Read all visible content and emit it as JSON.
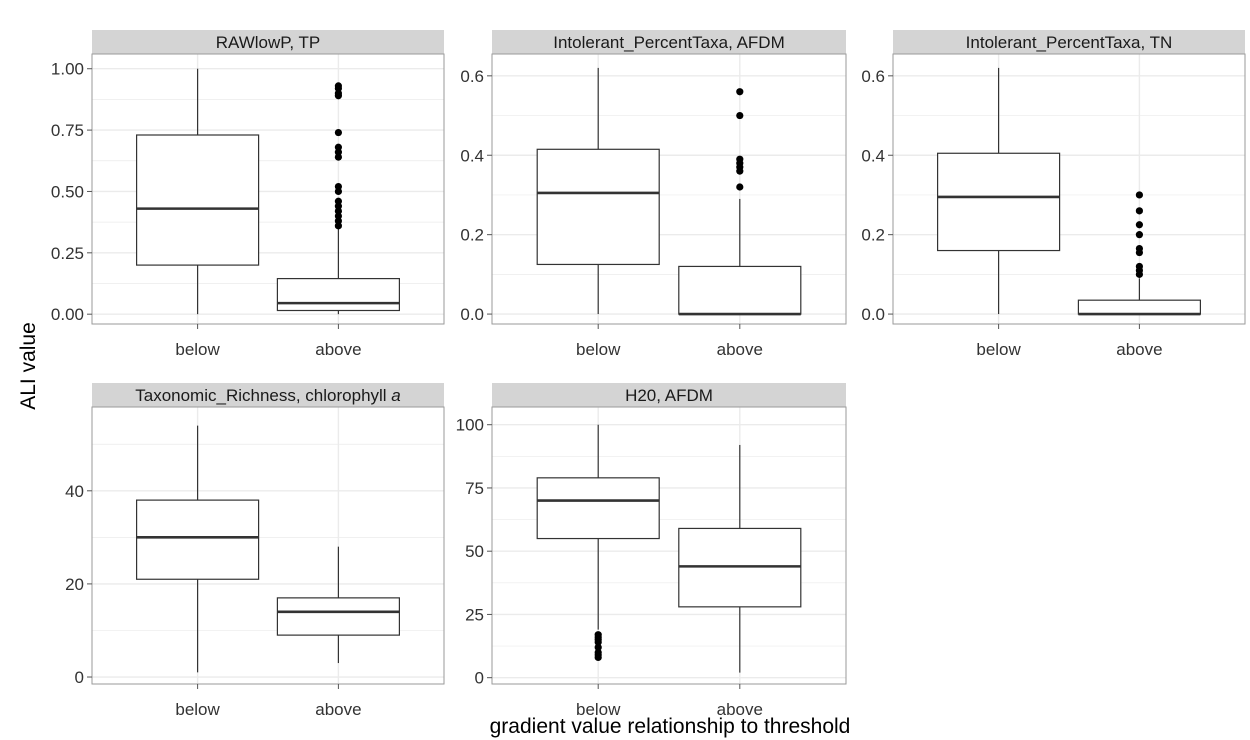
{
  "figure": {
    "ylabel": "ALI value",
    "xlabel": "gradient value relationship to threshold"
  },
  "colors": {
    "strip_fill": "#d4d4d4",
    "grid": "#ebebeb",
    "panel_border": "#9a9a9a",
    "box_stroke": "#333333",
    "outlier": "#000000"
  },
  "chart_data": [
    {
      "type": "box",
      "title": "RAWlowP, TP",
      "categories": [
        "below",
        "above"
      ],
      "ylim": [
        -0.04,
        1.06
      ],
      "yticks": [
        0,
        0.25,
        0.5,
        0.75,
        1
      ],
      "ytick_labels": [
        "0.00",
        "0.25",
        "0.50",
        "0.75",
        "1.00"
      ],
      "boxes": [
        {
          "category": "below",
          "min": 0.0,
          "q1": 0.2,
          "median": 0.43,
          "q3": 0.73,
          "max": 1.0,
          "outliers": []
        },
        {
          "category": "above",
          "min": 0.0,
          "q1": 0.015,
          "median": 0.045,
          "q3": 0.145,
          "max": 0.35,
          "outliers": [
            0.36,
            0.38,
            0.4,
            0.42,
            0.44,
            0.46,
            0.5,
            0.52,
            0.64,
            0.66,
            0.68,
            0.74,
            0.89,
            0.9,
            0.92,
            0.93
          ]
        }
      ]
    },
    {
      "type": "box",
      "title": "Intolerant_PercentTaxa, AFDM",
      "categories": [
        "below",
        "above"
      ],
      "ylim": [
        -0.025,
        0.655
      ],
      "yticks": [
        0,
        0.2,
        0.4,
        0.6
      ],
      "ytick_labels": [
        "0.0",
        "0.2",
        "0.4",
        "0.6"
      ],
      "boxes": [
        {
          "category": "below",
          "min": 0.0,
          "q1": 0.125,
          "median": 0.305,
          "q3": 0.415,
          "max": 0.62,
          "outliers": []
        },
        {
          "category": "above",
          "min": 0.0,
          "q1": 0.0,
          "median": 0.0,
          "q3": 0.12,
          "max": 0.29,
          "outliers": [
            0.32,
            0.36,
            0.37,
            0.38,
            0.39,
            0.5,
            0.56
          ]
        }
      ]
    },
    {
      "type": "box",
      "title": "Intolerant_PercentTaxa, TN",
      "categories": [
        "below",
        "above"
      ],
      "ylim": [
        -0.025,
        0.655
      ],
      "yticks": [
        0,
        0.2,
        0.4,
        0.6
      ],
      "ytick_labels": [
        "0.0",
        "0.2",
        "0.4",
        "0.6"
      ],
      "boxes": [
        {
          "category": "below",
          "min": 0.0,
          "q1": 0.16,
          "median": 0.295,
          "q3": 0.405,
          "max": 0.62,
          "outliers": []
        },
        {
          "category": "above",
          "min": 0.0,
          "q1": 0.0,
          "median": 0.0,
          "q3": 0.035,
          "max": 0.09,
          "outliers": [
            0.1,
            0.11,
            0.12,
            0.155,
            0.165,
            0.2,
            0.225,
            0.26,
            0.3
          ]
        }
      ]
    },
    {
      "type": "box",
      "title": "Taxonomic_Richness, chlorophyll a",
      "title_main": "Taxonomic_Richness, chlorophyll ",
      "title_italic": "a",
      "categories": [
        "below",
        "above"
      ],
      "ylim": [
        -1.5,
        58
      ],
      "yticks": [
        0,
        20,
        40
      ],
      "ytick_labels": [
        "0",
        "20",
        "40"
      ],
      "boxes": [
        {
          "category": "below",
          "min": 1,
          "q1": 21,
          "median": 30,
          "q3": 38,
          "max": 54,
          "outliers": []
        },
        {
          "category": "above",
          "min": 3,
          "q1": 9,
          "median": 14,
          "q3": 17,
          "max": 28,
          "outliers": []
        }
      ]
    },
    {
      "type": "box",
      "title": "H20, AFDM",
      "categories": [
        "below",
        "above"
      ],
      "ylim": [
        -2.5,
        107
      ],
      "yticks": [
        0,
        25,
        50,
        75,
        100
      ],
      "ytick_labels": [
        "0",
        "25",
        "50",
        "75",
        "100"
      ],
      "boxes": [
        {
          "category": "below",
          "min": 19,
          "q1": 55,
          "median": 70,
          "q3": 79,
          "max": 100,
          "outliers": [
            8,
            9,
            10,
            12,
            14,
            15,
            16,
            17
          ]
        },
        {
          "category": "above",
          "min": 2,
          "q1": 28,
          "median": 44,
          "q3": 59,
          "max": 92,
          "outliers": []
        }
      ]
    }
  ]
}
